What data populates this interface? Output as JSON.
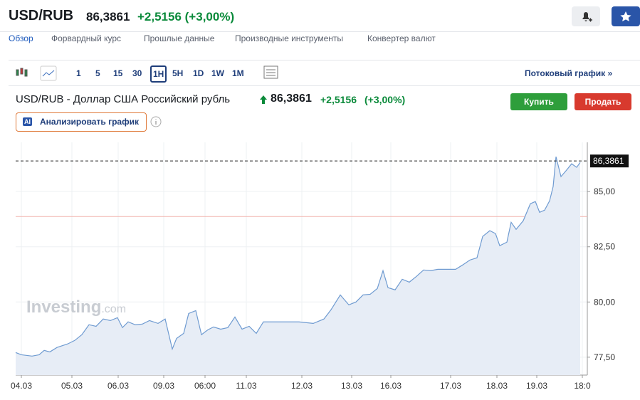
{
  "header": {
    "symbol": "USD/RUB",
    "price": "86,3861",
    "change": "+2,5156 (+3,00%)"
  },
  "tabs": [
    "Обзор",
    "Форвардный курс",
    "Прошлые данные",
    "Производные инструменты",
    "Конвертер валют"
  ],
  "toolbar": {
    "intervals": [
      "1",
      "5",
      "15",
      "30",
      "1H",
      "5H",
      "1D",
      "1W",
      "1M"
    ],
    "stream_link": "Потоковый график »"
  },
  "instrument": {
    "name": "USD/RUB - Доллар США Российский рубль",
    "price": "86,3861",
    "change": "+2,5156",
    "change_pct": "(+3,00%)",
    "buy": "Купить",
    "sell": "Продать",
    "analyze": "Анализировать график",
    "ai": "AI"
  },
  "chart_data": {
    "type": "area",
    "color": "#6f9bd1",
    "watermark": [
      "Investing",
      ".com"
    ],
    "x": [
      0,
      8,
      23,
      33,
      40,
      48,
      58,
      73,
      83,
      93,
      103,
      113,
      123,
      133,
      143,
      150,
      158,
      168,
      178,
      188,
      200,
      210,
      220,
      226,
      236,
      243,
      253,
      261,
      270,
      278,
      288,
      298,
      308,
      318,
      328,
      338,
      348,
      358,
      398,
      418,
      433,
      443,
      456,
      468,
      478,
      488,
      498,
      508,
      516,
      523,
      533,
      543,
      553,
      563,
      573,
      583,
      593,
      618,
      628,
      638,
      648,
      656,
      666,
      674,
      680,
      690,
      696,
      703,
      713,
      723,
      730,
      736,
      743,
      750,
      755,
      759,
      766,
      773,
      781,
      788,
      793
    ],
    "values": [
      77.71,
      77.61,
      77.55,
      77.61,
      77.81,
      77.74,
      77.94,
      78.1,
      78.26,
      78.52,
      78.97,
      78.9,
      79.23,
      79.16,
      79.29,
      78.84,
      79.1,
      78.97,
      79.0,
      79.16,
      79.03,
      79.23,
      77.87,
      78.35,
      78.58,
      79.48,
      79.61,
      78.52,
      78.74,
      78.87,
      78.77,
      78.84,
      79.32,
      78.77,
      78.9,
      78.58,
      79.1,
      79.1,
      79.1,
      79.03,
      79.23,
      79.65,
      80.32,
      79.87,
      80.0,
      80.32,
      80.35,
      80.61,
      81.42,
      80.65,
      80.55,
      81.03,
      80.9,
      81.16,
      81.45,
      81.42,
      81.48,
      81.48,
      81.68,
      81.9,
      82.0,
      82.97,
      83.23,
      83.1,
      82.55,
      82.71,
      83.61,
      83.29,
      83.68,
      84.45,
      84.55,
      84.06,
      84.16,
      84.58,
      85.23,
      86.58,
      85.68,
      85.94,
      86.26,
      86.1,
      86.32
    ],
    "xlim": [
      0,
      803
    ],
    "ylim": [
      76.69,
      87.23
    ],
    "xticks": [
      {
        "value": 8,
        "label": "04.03"
      },
      {
        "value": 79,
        "label": "05.03"
      },
      {
        "value": 144,
        "label": "06.03"
      },
      {
        "value": 208,
        "label": "09.03"
      },
      {
        "value": 266,
        "label": "06:00"
      },
      {
        "value": 324,
        "label": "11.03"
      },
      {
        "value": 402,
        "label": "12.03"
      },
      {
        "value": 472,
        "label": "13.03"
      },
      {
        "value": 527,
        "label": "16.03"
      },
      {
        "value": 611,
        "label": "17.03"
      },
      {
        "value": 676,
        "label": "18.03"
      },
      {
        "value": 732,
        "label": "19.03"
      },
      {
        "value": 796,
        "label": "18:0"
      }
    ],
    "yticks": [
      {
        "value": 77.5,
        "label": "77,50"
      },
      {
        "value": 80,
        "label": "80,00"
      },
      {
        "value": 82.5,
        "label": "82,50"
      },
      {
        "value": 85,
        "label": "85,00"
      }
    ],
    "last_price": {
      "value": 86.3861,
      "label": "86,3861"
    },
    "reference_line": 83.8705,
    "grid": true
  }
}
